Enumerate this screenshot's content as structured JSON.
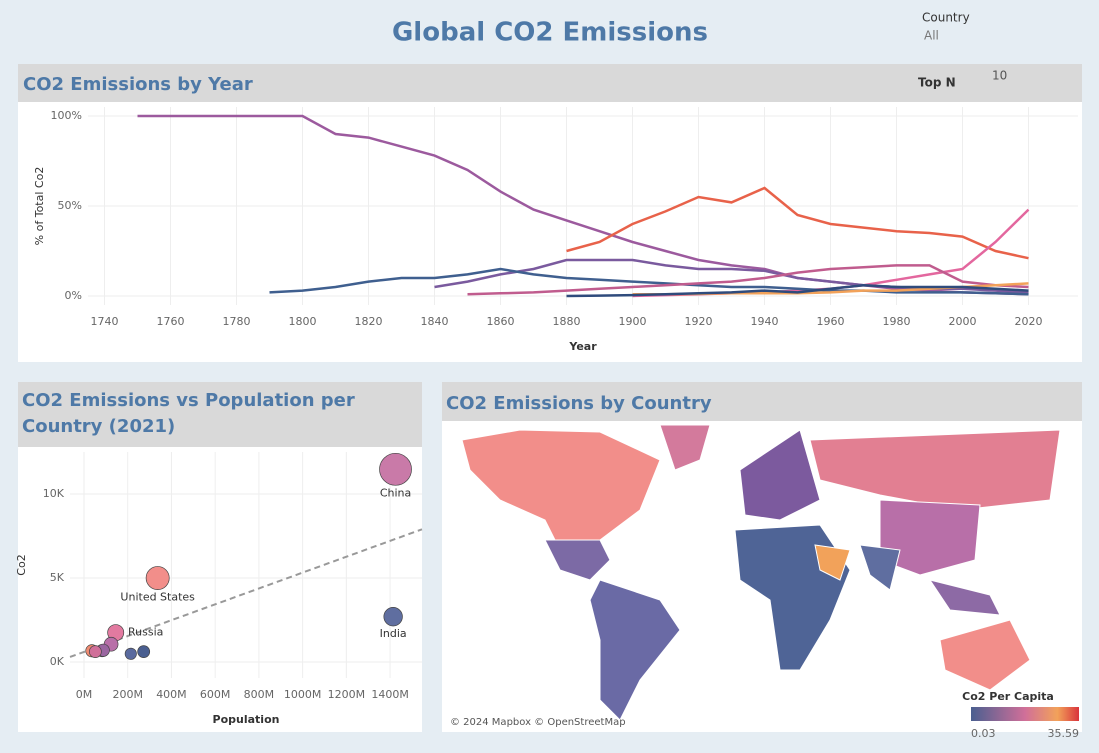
{
  "header": {
    "title": "Global CO2 Emissions",
    "filters": [
      {
        "label": "Country",
        "value": "All"
      },
      {
        "label": "Top N",
        "value": 10
      }
    ]
  },
  "chart_data": [
    {
      "type": "line",
      "title": "CO2 Emissions by Year",
      "x_label": "Year",
      "y_label": "% of Total Co2",
      "x": [
        1750,
        1760,
        1770,
        1780,
        1790,
        1800,
        1810,
        1820,
        1830,
        1840,
        1850,
        1860,
        1870,
        1880,
        1890,
        1900,
        1910,
        1920,
        1930,
        1940,
        1950,
        1960,
        1970,
        1980,
        1990,
        2000,
        2010,
        2020
      ],
      "series": [
        {
          "color": "#9c5a9e",
          "values": [
            100,
            100,
            100,
            100,
            100,
            100,
            90,
            88,
            83,
            78,
            70,
            58,
            48,
            42,
            36,
            30,
            25,
            20,
            17,
            15,
            10,
            8,
            6,
            4,
            3,
            2,
            1.5,
            1
          ]
        },
        {
          "color": "#e8624a",
          "values": [
            null,
            null,
            null,
            null,
            null,
            null,
            null,
            null,
            null,
            null,
            null,
            null,
            null,
            25,
            30,
            40,
            47,
            55,
            52,
            60,
            45,
            40,
            38,
            36,
            35,
            33,
            25,
            21
          ]
        },
        {
          "color": "#e3679e",
          "values": [
            null,
            null,
            null,
            null,
            null,
            null,
            null,
            null,
            null,
            null,
            null,
            null,
            null,
            null,
            null,
            0,
            0.5,
            1,
            1.5,
            2,
            3,
            4,
            6,
            9,
            12,
            15,
            30,
            48
          ]
        },
        {
          "color": "#7a5a9e",
          "values": [
            null,
            null,
            null,
            null,
            null,
            null,
            null,
            null,
            null,
            5,
            8,
            12,
            15,
            20,
            20,
            20,
            17,
            15,
            15,
            14,
            10,
            8,
            6,
            5,
            4,
            4,
            3,
            2
          ]
        },
        {
          "color": "#3f5f8f",
          "values": [
            null,
            null,
            null,
            null,
            2,
            3,
            5,
            8,
            10,
            10,
            12,
            15,
            12,
            10,
            9,
            8,
            7,
            6,
            5,
            5,
            4,
            3,
            3,
            2,
            2,
            2,
            1.5,
            1
          ]
        },
        {
          "color": "#c05c8e",
          "values": [
            null,
            null,
            null,
            null,
            null,
            null,
            null,
            null,
            null,
            null,
            1,
            1.5,
            2,
            3,
            4,
            5,
            6,
            7,
            8,
            10,
            13,
            15,
            16,
            17,
            17,
            8,
            6,
            5
          ]
        },
        {
          "color": "#f2a25a",
          "values": [
            null,
            null,
            null,
            null,
            null,
            null,
            null,
            null,
            null,
            null,
            null,
            null,
            null,
            null,
            null,
            1,
            1,
            1.2,
            1.5,
            1.5,
            1.5,
            2,
            3,
            3,
            4,
            5,
            6,
            7
          ]
        },
        {
          "color": "#2f4b7c",
          "values": [
            null,
            null,
            null,
            null,
            null,
            null,
            null,
            null,
            null,
            null,
            null,
            null,
            null,
            0,
            0.2,
            0.5,
            1,
            1.5,
            2,
            3,
            2,
            4,
            6,
            5,
            5,
            5,
            4,
            3
          ]
        }
      ],
      "xlim": [
        1735,
        2035
      ],
      "xticks": [
        1740,
        1760,
        1780,
        1800,
        1820,
        1840,
        1860,
        1880,
        1900,
        1920,
        1940,
        1960,
        1980,
        2000,
        2020
      ],
      "ylim": [
        -5,
        105
      ],
      "yticks": [
        {
          "value": 0,
          "label": "0%"
        },
        {
          "value": 50,
          "label": "50%"
        },
        {
          "value": 100,
          "label": "100%"
        }
      ],
      "grid": true
    },
    {
      "type": "scatter",
      "title": "CO2 Emissions vs Population per Country (2021)",
      "x_label": "Population",
      "y_label": "Co2",
      "x": [
        1425,
        337,
        1414,
        145,
        124,
        83,
        88,
        273,
        214,
        36,
        52
      ],
      "values": [
        11470,
        5000,
        2700,
        1750,
        1060,
        680,
        700,
        620,
        490,
        670,
        620
      ],
      "colors": [
        "#c97aa8",
        "#f28e8a",
        "#5f6ea0",
        "#e27aa0",
        "#b86fa8",
        "#8d6aa5",
        "#9a66a0",
        "#4a5f90",
        "#5a6a9e",
        "#f08a70",
        "#d06f99"
      ],
      "labels": [
        "China",
        "United States",
        "India",
        "Russia",
        null,
        null,
        null,
        null,
        null,
        null,
        null
      ],
      "trend": {
        "x": [
          -64,
          1546
        ],
        "y": [
          300,
          7900
        ]
      },
      "xlim": [
        -64,
        1546
      ],
      "xticks": [
        {
          "value": 0,
          "label": "0M"
        },
        {
          "value": 200,
          "label": "200M"
        },
        {
          "value": 400,
          "label": "400M"
        },
        {
          "value": 600,
          "label": "600M"
        },
        {
          "value": 800,
          "label": "800M"
        },
        {
          "value": 1000,
          "label": "1000M"
        },
        {
          "value": 1200,
          "label": "1200M"
        },
        {
          "value": 1400,
          "label": "1400M"
        }
      ],
      "ylim": [
        -950,
        12500
      ],
      "yticks": [
        {
          "value": 0,
          "label": "0K"
        },
        {
          "value": 5000,
          "label": "5K"
        },
        {
          "value": 10000,
          "label": "10K"
        }
      ],
      "grid": true
    },
    {
      "type": "map",
      "title": "CO2 Emissions by Country",
      "legend_title": "Co2 Per Capita",
      "color_range": [
        0.03,
        35.59
      ],
      "attribution": "© 2024 Mapbox © OpenStreetMap"
    }
  ]
}
